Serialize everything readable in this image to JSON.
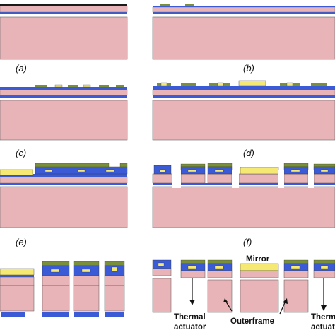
{
  "colors": {
    "substrate": "#e8b4b8",
    "oxide": "#3b5bd6",
    "gold": "#f5e873",
    "green": "#7a8f3a",
    "dark": "#1a1a1a",
    "outline": "#555555"
  },
  "panels": [
    {
      "label": "(a)"
    },
    {
      "label": "(b)"
    },
    {
      "label": "(c)"
    },
    {
      "label": "(d)"
    },
    {
      "label": "(e)"
    },
    {
      "label": "(f)"
    }
  ],
  "annotations": {
    "mirror": "Mirror",
    "thermal_actuator_left": [
      "Thermal",
      "actuator"
    ],
    "outerframe": "Outerframe",
    "thermal_actuator_right": [
      "Thermal",
      "actuato"
    ]
  }
}
